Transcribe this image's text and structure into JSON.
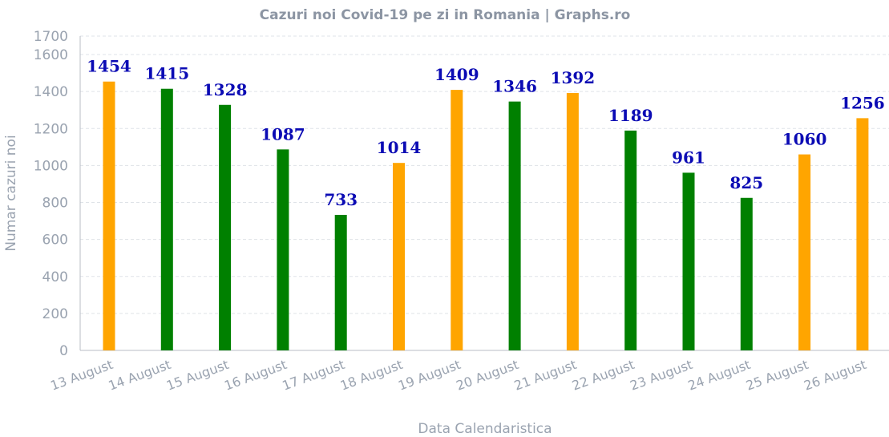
{
  "chart_data": {
    "type": "bar",
    "title": "Cazuri noi Covid-19 pe zi in Romania | Graphs.ro",
    "xlabel": "Data Calendaristica",
    "ylabel": "Numar cazuri noi",
    "ylim": [
      0,
      1700
    ],
    "yticks": [
      0,
      200,
      400,
      600,
      800,
      1000,
      1200,
      1400,
      1600,
      1700
    ],
    "grid": true,
    "categories": [
      "13 August",
      "14 August",
      "15 August",
      "16 August",
      "17 August",
      "18 August",
      "19 August",
      "20 August",
      "21 August",
      "22 August",
      "23 August",
      "24 August",
      "25 August",
      "26 August"
    ],
    "values": [
      1454,
      1415,
      1328,
      1087,
      733,
      1014,
      1409,
      1346,
      1392,
      1189,
      961,
      825,
      1060,
      1256
    ],
    "bar_colors": [
      "#ffa500",
      "#008000",
      "#008000",
      "#008000",
      "#008000",
      "#ffa500",
      "#ffa500",
      "#008000",
      "#ffa500",
      "#008000",
      "#008000",
      "#008000",
      "#ffa500",
      "#ffa500"
    ],
    "data_label_color": "#0b0bb4"
  }
}
